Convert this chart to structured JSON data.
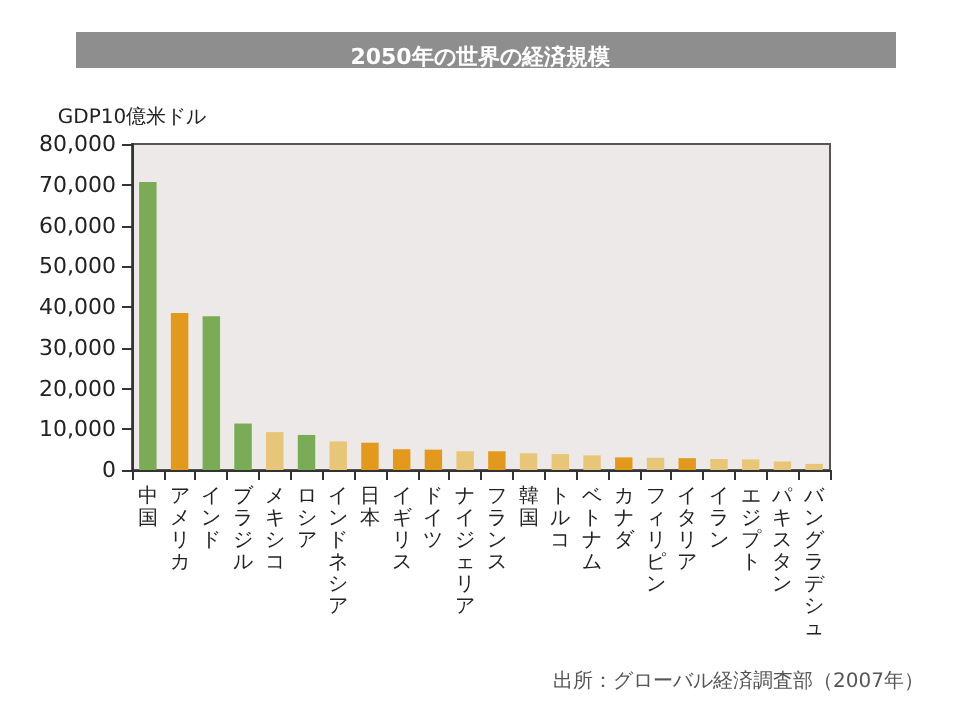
{
  "chart_data": {
    "type": "bar",
    "title": "2050年の世界の経済規模",
    "ylabel": "GDP10億米ドル",
    "categories": [
      "中国",
      "アメリカ",
      "インド",
      "ブラジル",
      "メキシコ",
      "ロシア",
      "インドネシア",
      "日本",
      "イギリス",
      "ドイツ",
      "ナイジェリア",
      "フランス",
      "韓国",
      "トルコ",
      "ベトナム",
      "カナダ",
      "フィリピン",
      "イタリア",
      "イラン",
      "エジプト",
      "パキスタン",
      "バングラデシュ"
    ],
    "values": [
      70700,
      38500,
      37700,
      11400,
      9300,
      8600,
      7000,
      6700,
      5100,
      5000,
      4600,
      4600,
      4100,
      3900,
      3600,
      3100,
      3000,
      2900,
      2700,
      2600,
      2100,
      1500
    ],
    "colors": [
      "#7aab55",
      "#e39a1c",
      "#7aab55",
      "#7aab55",
      "#e8c677",
      "#7aab55",
      "#e8c677",
      "#e39a1c",
      "#e39a1c",
      "#e39a1c",
      "#e8c677",
      "#e39a1c",
      "#e8c677",
      "#e8c677",
      "#e8c677",
      "#e39a1c",
      "#e8c677",
      "#e39a1c",
      "#e8c677",
      "#e8c677",
      "#e8c677",
      "#e8c677"
    ],
    "ylim": [
      0,
      80000
    ],
    "yticks": [
      0,
      {
        "value": 10000,
        "label": "10,000"
      },
      {
        "value": 20000,
        "label": "20,000"
      },
      {
        "value": 30000,
        "label": "30,000"
      },
      {
        "value": 40000,
        "label": "40,000"
      },
      {
        "value": 50000,
        "label": "50,000"
      },
      {
        "value": 60000,
        "label": "60,000"
      },
      {
        "value": 70000,
        "label": "70,000"
      },
      {
        "value": 80000,
        "label": "80,000"
      }
    ],
    "grid": false,
    "annotations": [
      "出所：グローバル経済調査部（2007年）"
    ]
  }
}
